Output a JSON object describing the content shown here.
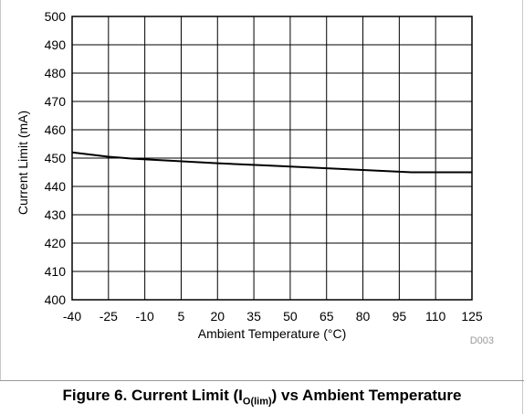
{
  "caption": {
    "prefix": "Figure 6. Current Limit (I",
    "subscript": "O(lim)",
    "suffix": ") vs Ambient Temperature"
  },
  "chart_data": {
    "type": "line",
    "xlabel": "Ambient Temperature (°C)",
    "ylabel": "Current Limit (mA)",
    "xlim": [
      -40,
      125
    ],
    "ylim": [
      400,
      500
    ],
    "xticks": [
      -40,
      -25,
      -10,
      5,
      20,
      35,
      50,
      65,
      80,
      95,
      110,
      125
    ],
    "yticks": [
      400,
      410,
      420,
      430,
      440,
      450,
      460,
      470,
      480,
      490,
      500
    ],
    "grid": true,
    "legend": "none",
    "annotation": "D003",
    "series": [
      {
        "color": "#000000",
        "x": [
          -40,
          -25,
          -15,
          0,
          20,
          40,
          60,
          80,
          100,
          110,
          125
        ],
        "y": [
          452,
          450.5,
          449.8,
          449.1,
          448.2,
          447.4,
          446.6,
          445.8,
          445,
          445,
          445
        ]
      }
    ]
  }
}
